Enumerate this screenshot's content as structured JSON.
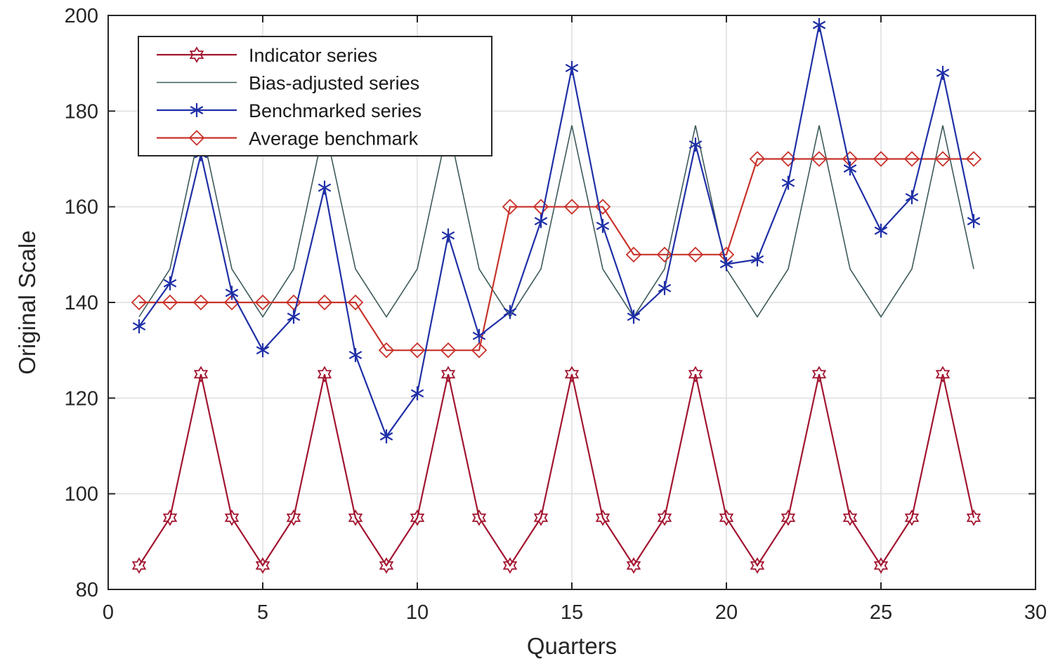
{
  "chart_data": {
    "type": "line",
    "xlabel": "Quarters",
    "ylabel": "Original Scale",
    "xlim": [
      0,
      30
    ],
    "ylim": [
      80,
      200
    ],
    "xticks": [
      0,
      5,
      10,
      15,
      20,
      25,
      30
    ],
    "yticks": [
      80,
      100,
      120,
      140,
      160,
      180,
      200
    ],
    "grid": true,
    "legend_position": "top-left",
    "x": [
      1,
      2,
      3,
      4,
      5,
      6,
      7,
      8,
      9,
      10,
      11,
      12,
      13,
      14,
      15,
      16,
      17,
      18,
      19,
      20,
      21,
      22,
      23,
      24,
      25,
      26,
      27,
      28
    ],
    "series": [
      {
        "name": "Indicator series",
        "color": "#a2142f",
        "marker": "hexagram",
        "values": [
          85,
          95,
          125,
          95,
          85,
          95,
          125,
          95,
          85,
          95,
          125,
          95,
          85,
          95,
          125,
          95,
          85,
          95,
          125,
          95,
          85,
          95,
          125,
          95,
          85,
          95,
          125,
          95
        ]
      },
      {
        "name": "Bias-adjusted series",
        "color": "#3d5a5a",
        "marker": "none",
        "values": [
          137,
          147,
          177,
          147,
          137,
          147,
          177,
          147,
          137,
          147,
          177,
          147,
          137,
          147,
          177,
          147,
          137,
          147,
          177,
          147,
          137,
          147,
          177,
          147,
          137,
          147,
          177,
          147
        ]
      },
      {
        "name": "Benchmarked series",
        "color": "#1f2fa6",
        "marker": "asterisk",
        "values": [
          135,
          144,
          171,
          142,
          130,
          137,
          164,
          129,
          112,
          121,
          154,
          133,
          138,
          157,
          189,
          156,
          137,
          143,
          173,
          148,
          149,
          165,
          198,
          168,
          155,
          162,
          188,
          157
        ]
      },
      {
        "name": "Average benchmark",
        "color": "#c8322a",
        "marker": "diamond",
        "values": [
          140,
          140,
          140,
          140,
          140,
          140,
          140,
          140,
          130,
          130,
          130,
          130,
          160,
          160,
          160,
          160,
          150,
          150,
          150,
          150,
          170,
          170,
          170,
          170,
          170,
          170,
          170,
          170
        ]
      }
    ]
  }
}
